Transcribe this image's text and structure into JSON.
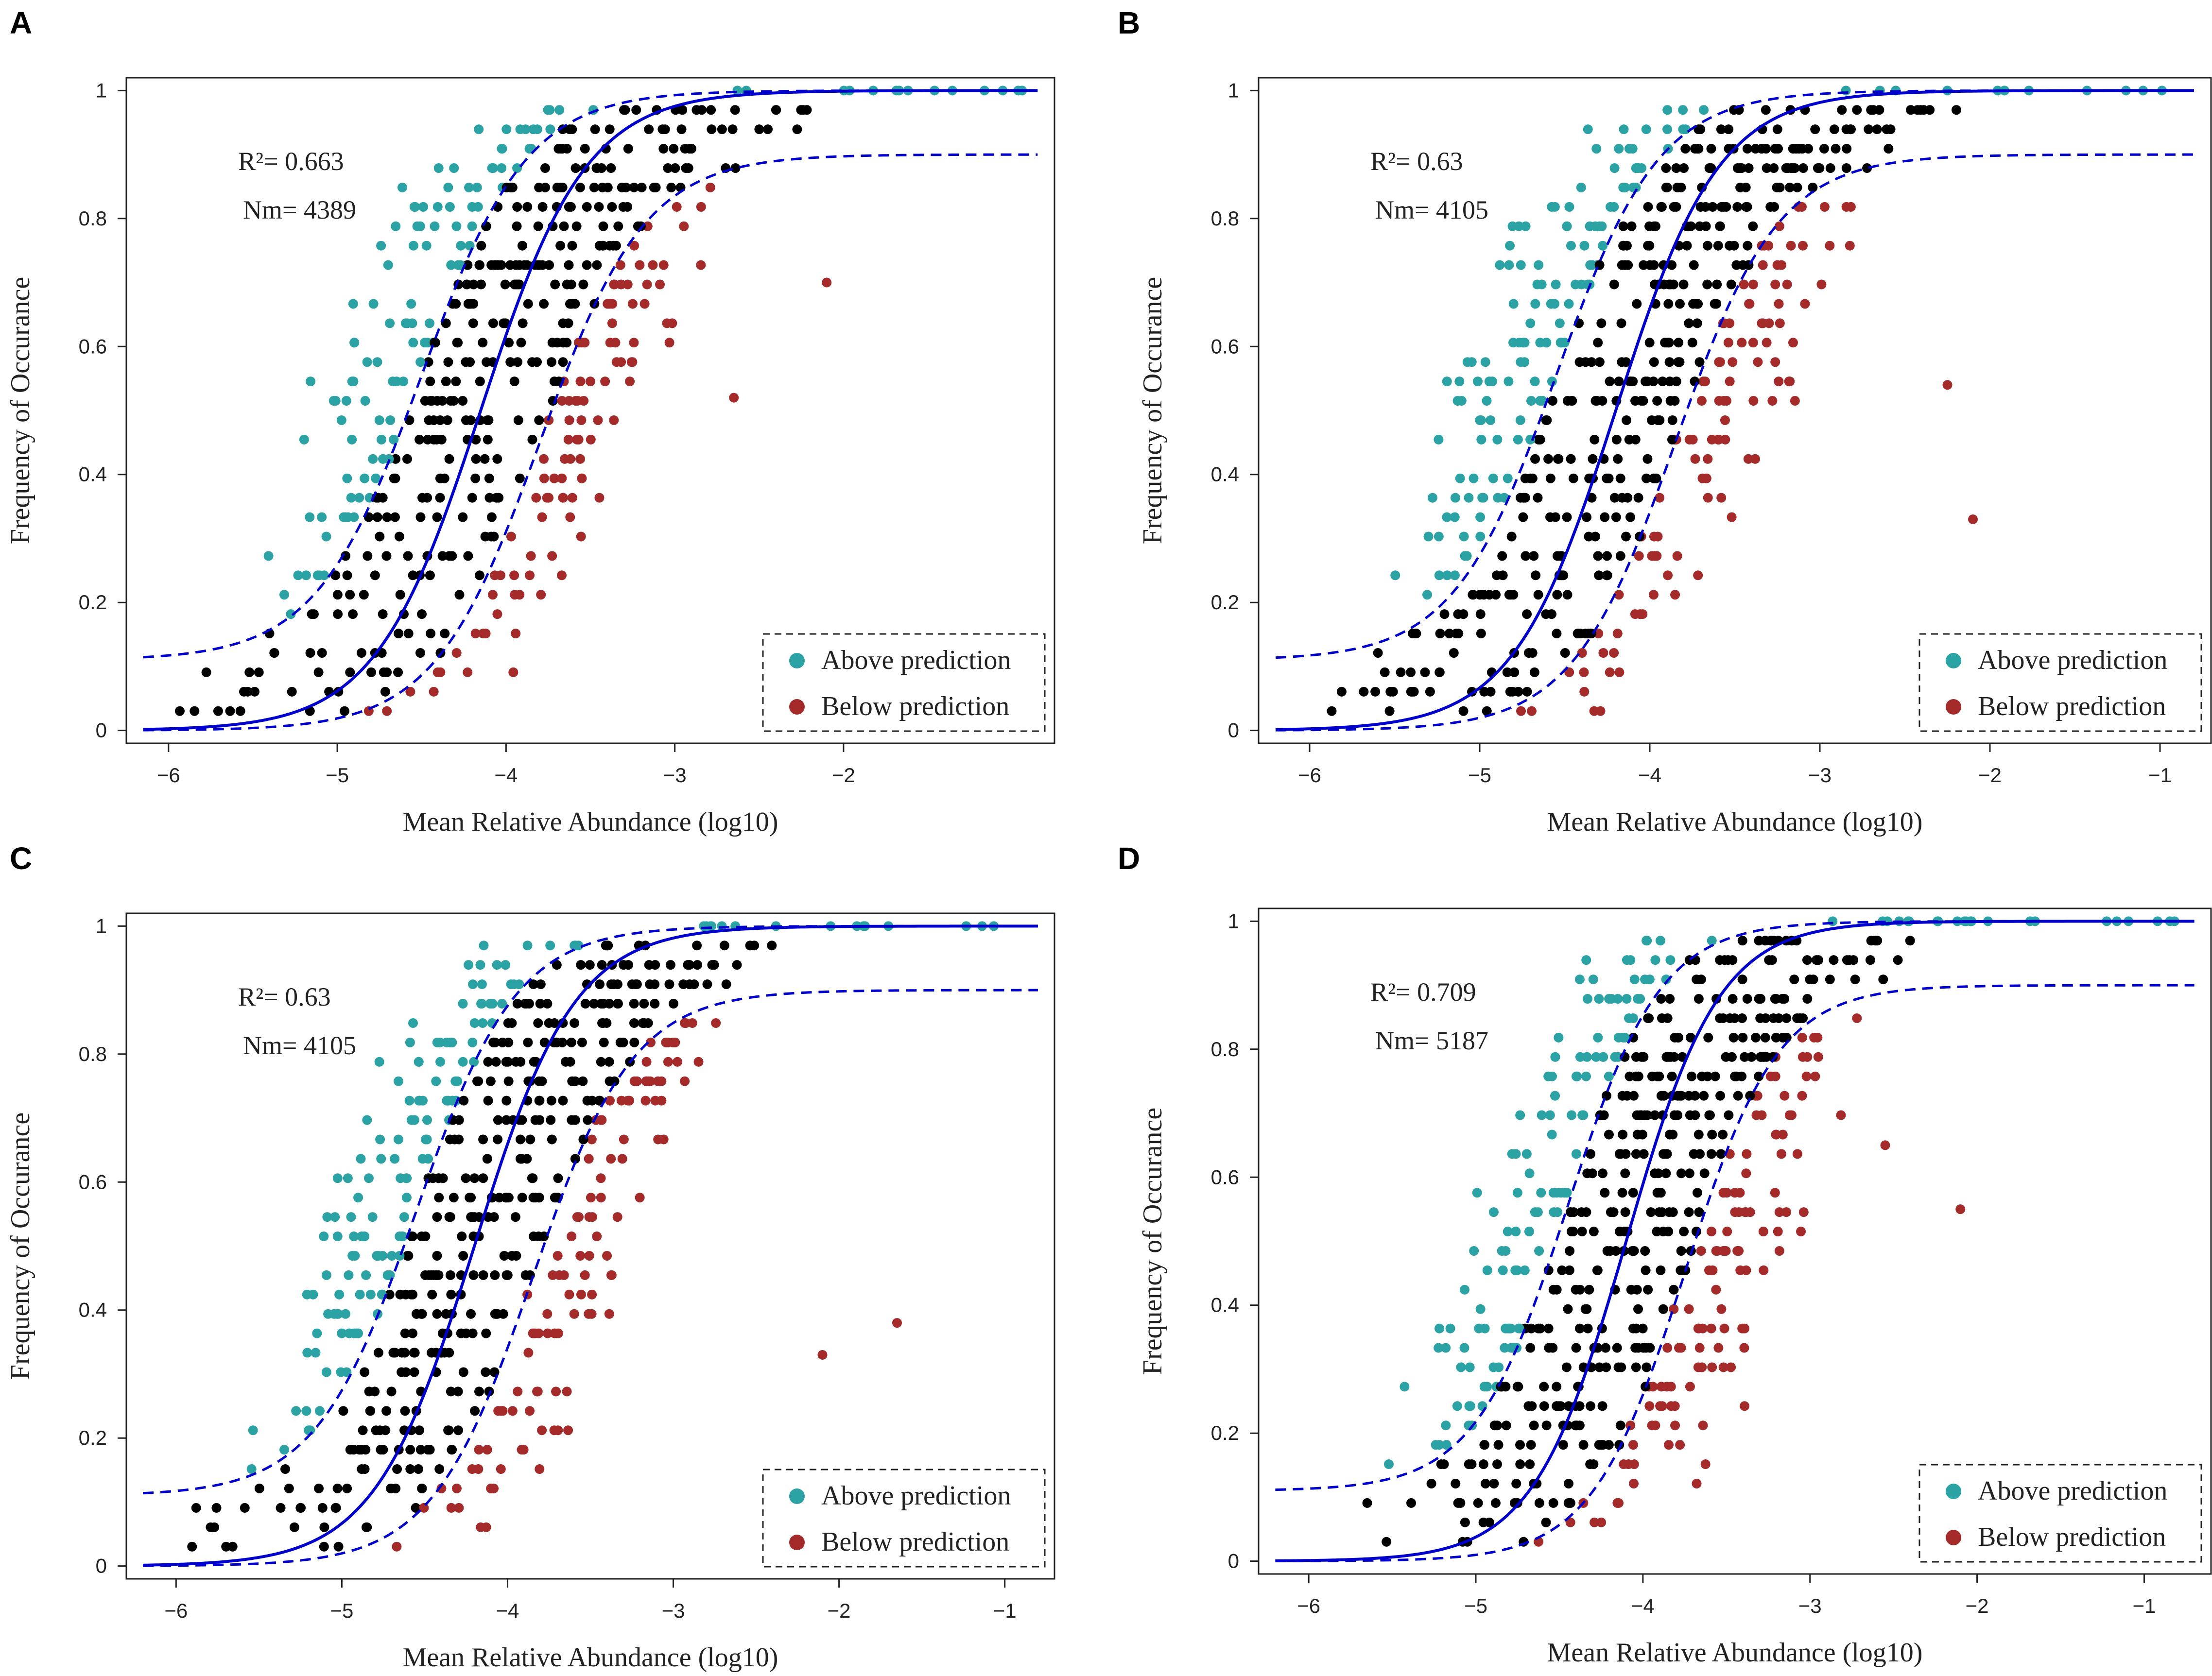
{
  "colors": {
    "above": "#2ba3a5",
    "below": "#a52a2a",
    "neutral": "#000000",
    "fit": "#0000cc",
    "axis": "#222222"
  },
  "legend": {
    "above_label": "Above prediction",
    "below_label": "Below prediction"
  },
  "chart_data": [
    {
      "panel": "A",
      "type": "scatter",
      "xlabel": "Mean Relative Abundance (log10)",
      "ylabel": "Frequency of Occurance",
      "r2_label": "R²= 0.663",
      "nm_label": "Nm= 4389",
      "xlim": [
        -6.25,
        -0.75
      ],
      "ylim": [
        0,
        1
      ],
      "xticks": [
        -6,
        -5,
        -4,
        -3,
        -2
      ],
      "yticks": [
        0,
        0.2,
        0.4,
        0.6,
        0.8,
        1
      ],
      "xtick_labels": [
        "−6",
        "−5",
        "−4",
        "−3",
        "−2"
      ],
      "ytick_labels": [
        "0",
        "0.2",
        "0.4",
        "0.6",
        "0.8",
        "1"
      ],
      "fit": {
        "midpoint": -4.15,
        "slope": 3.2,
        "upper_shift": -0.35,
        "lower_shift": 0.35,
        "lower_plateau": 0.9,
        "upper_floor": 0.11
      },
      "seed": 11,
      "points": 560,
      "extra_points": [
        {
          "x": -2.1,
          "y": 0.7,
          "group": "below"
        },
        {
          "x": -2.65,
          "y": 0.52,
          "group": "below"
        }
      ]
    },
    {
      "panel": "B",
      "type": "scatter",
      "xlabel": "Mean Relative Abundance (log10)",
      "ylabel": "Frequency of Occurance",
      "r2_label": "R²= 0.63",
      "nm_label": "Nm= 4105",
      "xlim": [
        -6.3,
        -0.7
      ],
      "ylim": [
        0,
        1
      ],
      "xticks": [
        -6,
        -5,
        -4,
        -3,
        -2,
        -1
      ],
      "yticks": [
        0,
        0.2,
        0.4,
        0.6,
        0.8,
        1
      ],
      "xtick_labels": [
        "−6",
        "−5",
        "−4",
        "−3",
        "−2",
        "−1"
      ],
      "ytick_labels": [
        "0",
        "0.2",
        "0.4",
        "0.6",
        "0.8",
        "1"
      ],
      "fit": {
        "midpoint": -4.2,
        "slope": 3.3,
        "upper_shift": -0.35,
        "lower_shift": 0.35,
        "lower_plateau": 0.9,
        "upper_floor": 0.11
      },
      "seed": 23,
      "points": 620,
      "extra_points": [
        {
          "x": -2.1,
          "y": 0.33,
          "group": "below"
        },
        {
          "x": -2.25,
          "y": 0.54,
          "group": "below"
        }
      ]
    },
    {
      "panel": "C",
      "type": "scatter",
      "xlabel": "Mean Relative Abundance (log10)",
      "ylabel": "Frequency of Occurance",
      "r2_label": "R²= 0.63",
      "nm_label": "Nm= 4105",
      "xlim": [
        -6.3,
        -0.7
      ],
      "ylim": [
        0,
        1
      ],
      "xticks": [
        -6,
        -5,
        -4,
        -3,
        -2,
        -1
      ],
      "yticks": [
        0,
        0.2,
        0.4,
        0.6,
        0.8,
        1
      ],
      "xtick_labels": [
        "−6",
        "−5",
        "−4",
        "−3",
        "−2",
        "−1"
      ],
      "ytick_labels": [
        "0",
        "0.2",
        "0.4",
        "0.6",
        "0.8",
        "1"
      ],
      "fit": {
        "midpoint": -4.2,
        "slope": 3.3,
        "upper_shift": -0.35,
        "lower_shift": 0.35,
        "lower_plateau": 0.9,
        "upper_floor": 0.11
      },
      "seed": 37,
      "points": 620,
      "extra_points": [
        {
          "x": -1.65,
          "y": 0.38,
          "group": "below"
        },
        {
          "x": -2.1,
          "y": 0.33,
          "group": "below"
        }
      ]
    },
    {
      "panel": "D",
      "type": "scatter",
      "xlabel": "Mean Relative Abundance (log10)",
      "ylabel": "Frequency of Occurance",
      "r2_label": "R²= 0.709",
      "nm_label": "Nm= 5187",
      "xlim": [
        -6.3,
        -0.6
      ],
      "ylim": [
        0,
        1
      ],
      "xticks": [
        -6,
        -5,
        -4,
        -3,
        -2,
        -1
      ],
      "yticks": [
        0,
        0.2,
        0.4,
        0.6,
        0.8,
        1
      ],
      "xtick_labels": [
        "−6",
        "−5",
        "−4",
        "−3",
        "−2",
        "−1"
      ],
      "ytick_labels": [
        "0",
        "0.2",
        "0.4",
        "0.6",
        "0.8",
        "1"
      ],
      "fit": {
        "midpoint": -4.1,
        "slope": 3.6,
        "upper_shift": -0.35,
        "lower_shift": 0.35,
        "lower_plateau": 0.9,
        "upper_floor": 0.11
      },
      "seed": 53,
      "points": 640,
      "extra_points": [
        {
          "x": -2.1,
          "y": 0.55,
          "group": "below"
        },
        {
          "x": -2.55,
          "y": 0.65,
          "group": "below"
        }
      ]
    }
  ]
}
